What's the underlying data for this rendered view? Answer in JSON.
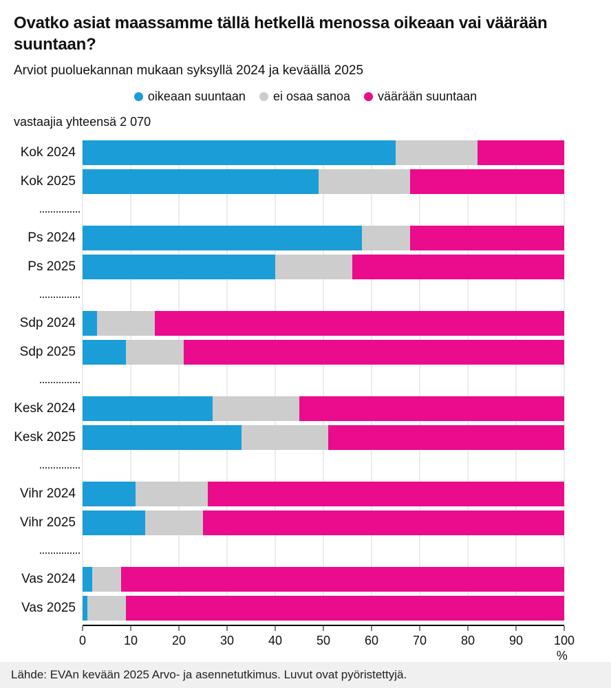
{
  "header": {
    "title": "Ovatko asiat maassamme tällä hetkellä menossa oikeaan vai väärään suuntaan?",
    "subtitle": "Arviot puoluekannan mukaan syksyllä 2024 ja keväällä 2025",
    "respondents_note": "vastaajia yhteensä 2 070"
  },
  "legend": [
    {
      "label": "oikeaan suuntaan",
      "color": "#1b9dd8"
    },
    {
      "label": "ei osaa sanoa",
      "color": "#cdcdcd"
    },
    {
      "label": "väärään suuntaan",
      "color": "#eb0b8d"
    }
  ],
  "chart_data": {
    "type": "bar",
    "orientation": "horizontal",
    "stacked": true,
    "title": "Ovatko asiat maassamme tällä hetkellä menossa oikeaan vai väärään suuntaan?",
    "subtitle": "Arviot puoluekannan mukaan syksyllä 2024 ja keväällä 2025",
    "legend_position": "top",
    "grid": true,
    "categories": [
      "Kok 2024",
      "Kok 2025",
      "Ps 2024",
      "Ps 2025",
      "Sdp 2024",
      "Sdp 2025",
      "Kesk 2024",
      "Kesk 2025",
      "Vihr 2024",
      "Vihr 2025",
      "Vas 2024",
      "Vas 2025"
    ],
    "series": [
      {
        "name": "oikeaan suuntaan",
        "color": "#1b9dd8",
        "values": [
          65,
          49,
          58,
          40,
          3,
          9,
          27,
          33,
          11,
          13,
          2,
          1
        ]
      },
      {
        "name": "ei osaa sanoa",
        "color": "#cdcdcd",
        "values": [
          17,
          19,
          10,
          16,
          12,
          12,
          18,
          18,
          15,
          12,
          6,
          8
        ]
      },
      {
        "name": "väärään suuntaan",
        "color": "#eb0b8d",
        "values": [
          18,
          32,
          32,
          44,
          85,
          79,
          55,
          49,
          74,
          75,
          92,
          91
        ]
      }
    ],
    "separator_after": [
      1,
      3,
      5,
      7,
      9
    ],
    "x_ticks": [
      0,
      10,
      20,
      30,
      40,
      50,
      60,
      70,
      80,
      90,
      100
    ],
    "xlim": [
      0,
      100
    ],
    "x_unit": "%"
  },
  "footer": {
    "source": "Lähde: EVAn kevään 2025 Arvo- ja asennetutkimus. Luvut ovat pyöristettyjä."
  }
}
